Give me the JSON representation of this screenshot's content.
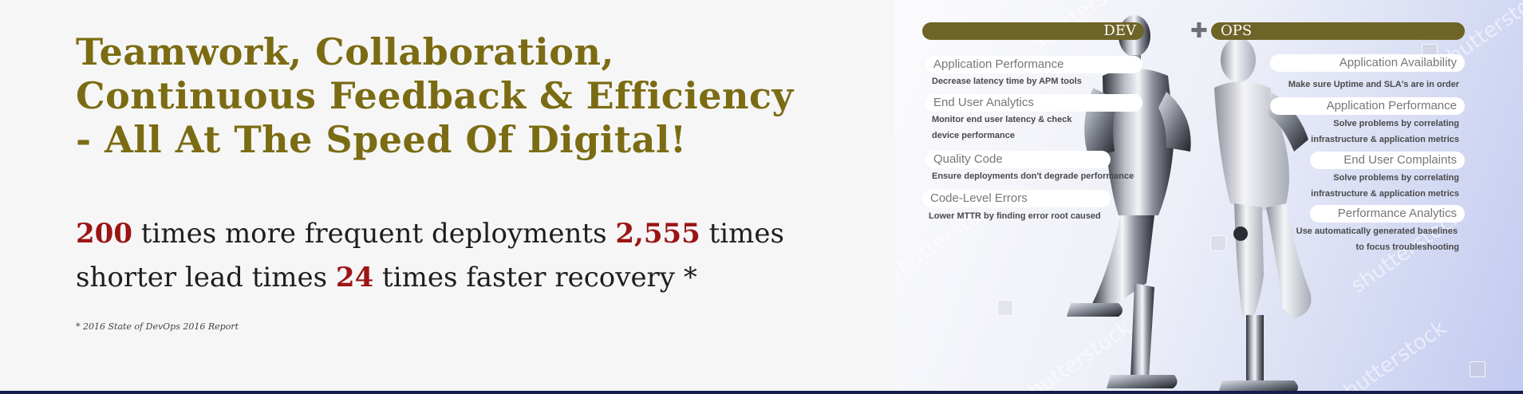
{
  "headline": {
    "line1": "Teamwork, Collaboration,",
    "line2": "Continuous Feedback & Efficiency",
    "line3": "- All At The Speed Of Digital!"
  },
  "stats": {
    "num1": "200",
    "text1": " times more frequent deployments ",
    "num2": "2,555",
    "text2": " times shorter lead times ",
    "num3": "24",
    "text3": " times faster recovery *"
  },
  "footnote": "* 2016 State of DevOps 2016 Report",
  "graphic": {
    "dev_label": "DEV",
    "ops_label": "OPS",
    "plus": "✚",
    "dev_items": [
      {
        "title": "Application Performance",
        "desc1": "Decrease latency time by APM tools",
        "desc2": ""
      },
      {
        "title": "End User Analytics",
        "desc1": "Monitor end user latency & check",
        "desc2": "device performance"
      },
      {
        "title": "Quality Code",
        "desc1": "Ensure deployments don't degrade performance",
        "desc2": ""
      },
      {
        "title": "Code-Level Errors",
        "desc1": "Lower MTTR by finding error root caused",
        "desc2": ""
      }
    ],
    "ops_items": [
      {
        "title": "Application Availability",
        "desc1": "Make sure Uptime and SLA's are in order",
        "desc2": ""
      },
      {
        "title": "Application Performance",
        "desc1": "Solve problems by correlating",
        "desc2": "infrastructure & application metrics"
      },
      {
        "title": "End User Complaints",
        "desc1": "Solve problems by correlating",
        "desc2": "infrastructure & application metrics"
      },
      {
        "title": "Performance Analytics",
        "desc1": "Use automatically generated baselines",
        "desc2": "to focus troubleshooting"
      }
    ],
    "watermark": "shutterstock"
  },
  "colors": {
    "headline": "#7b6c13",
    "stat_number": "#9c1414",
    "bar": "#6e6427"
  }
}
